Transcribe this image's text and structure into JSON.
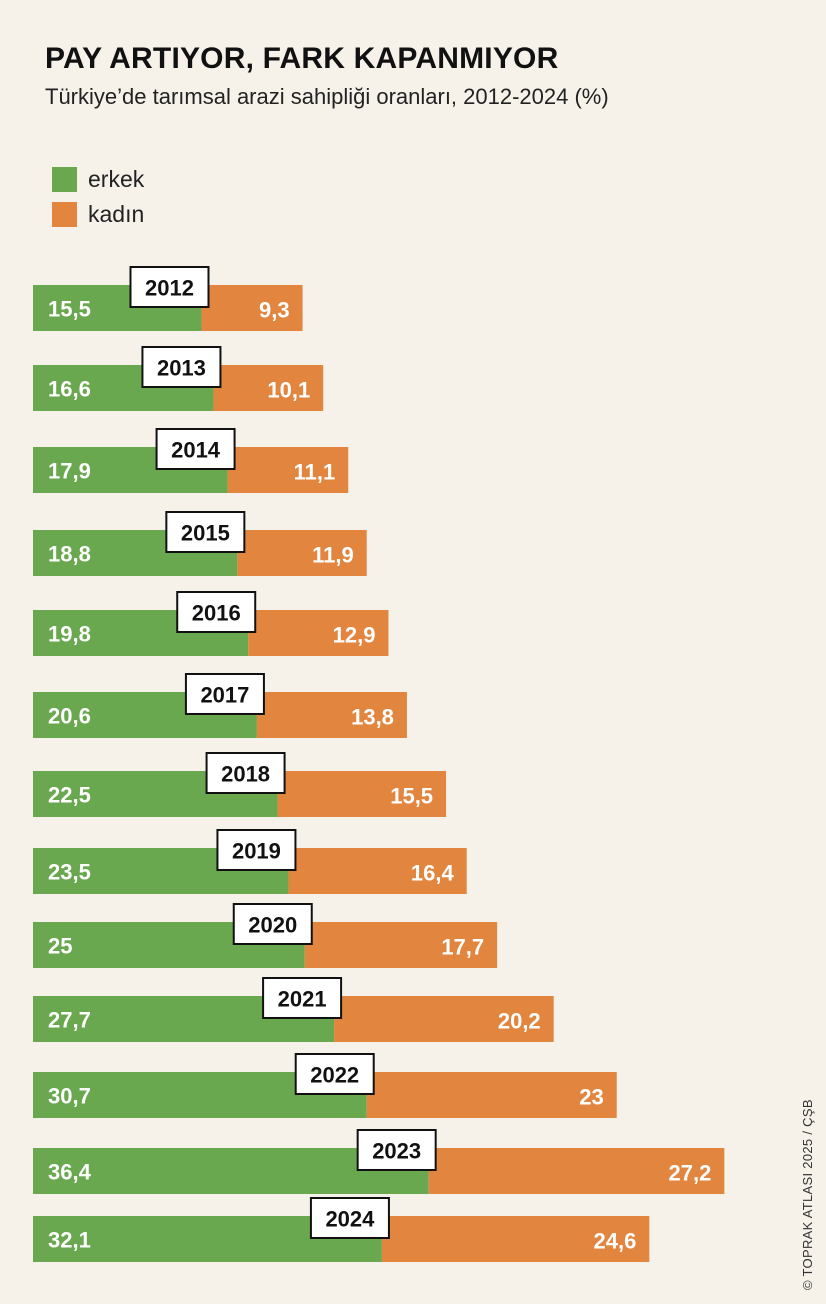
{
  "header": {
    "title": "PAY ARTIYOR, FARK KAPANMIYOR",
    "subtitle": "Türkiye’de tarımsal arazi sahipliği oranları, 2012-2024 (%)"
  },
  "legend": {
    "items": [
      {
        "label": "erkek",
        "color": "#6aa84f"
      },
      {
        "label": "kadın",
        "color": "#e2853e"
      }
    ]
  },
  "credit": "© TOPRAK ATLASI 2025 / ÇŞB",
  "chart_data": {
    "type": "bar",
    "orientation": "horizontal",
    "stacked": true,
    "title": "PAY ARTIYOR, FARK KAPANMIYOR",
    "subtitle": "Türkiye’de tarımsal arazi sahipliği oranları, 2012-2024 (%)",
    "categories": [
      "2012",
      "2013",
      "2014",
      "2015",
      "2016",
      "2017",
      "2018",
      "2019",
      "2020",
      "2021",
      "2022",
      "2023",
      "2024"
    ],
    "series": [
      {
        "name": "erkek",
        "color": "#6aa84f",
        "values": [
          15.5,
          16.6,
          17.9,
          18.8,
          19.8,
          20.6,
          22.5,
          23.5,
          25,
          27.7,
          30.7,
          36.4,
          32.1
        ],
        "labels": [
          "15,5",
          "16,6",
          "17,9",
          "18,8",
          "19,8",
          "20,6",
          "22,5",
          "23,5",
          "25",
          "27,7",
          "30,7",
          "36,4",
          "32,1"
        ]
      },
      {
        "name": "kadın",
        "color": "#e2853e",
        "values": [
          9.3,
          10.1,
          11.1,
          11.9,
          12.9,
          13.8,
          15.5,
          16.4,
          17.7,
          20.2,
          23,
          27.2,
          24.6
        ],
        "labels": [
          "9,3",
          "10,1",
          "11,1",
          "11,9",
          "12,9",
          "13,8",
          "15,5",
          "16,4",
          "17,7",
          "20,2",
          "23",
          "27,2",
          "24,6"
        ]
      }
    ],
    "unit": "%",
    "xlabel": "",
    "ylabel": "",
    "legend_position": "top-left",
    "grid": false
  }
}
